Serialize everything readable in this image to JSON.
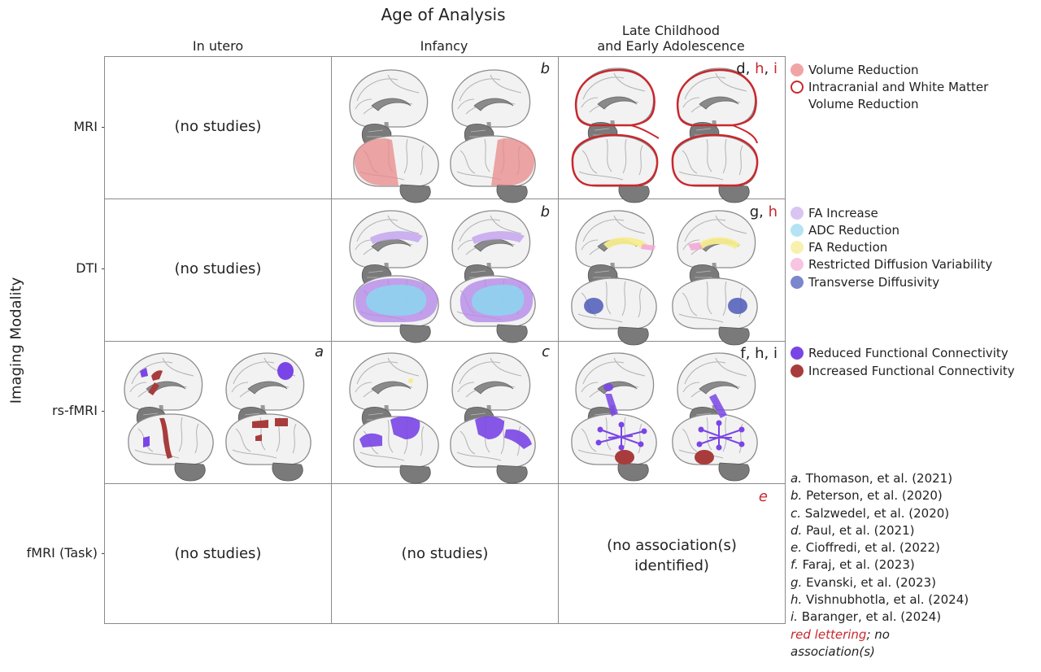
{
  "title": "Age of Analysis",
  "y_axis_label": "Imaging Modality",
  "columns": [
    {
      "label": "In utero"
    },
    {
      "label": "Infancy"
    },
    {
      "label_line1": "Late Childhood",
      "label_line2": "and Early Adolescence"
    }
  ],
  "rows": [
    {
      "label": "MRI"
    },
    {
      "label": "DTI"
    },
    {
      "label": "rs-fMRI"
    },
    {
      "label": "fMRI (Task)"
    }
  ],
  "cells": {
    "mri_utero": "(no studies)",
    "dti_utero": "(no studies)",
    "task_utero": "(no studies)",
    "task_infancy": "(no studies)",
    "task_late_line1": "(no association(s)",
    "task_late_line2": "identified)"
  },
  "cell_refs": {
    "mri_infancy": "b",
    "mri_late_black": "d, ",
    "mri_late_red1": "h",
    "mri_late_sep": ", ",
    "mri_late_red2": "i",
    "dti_infancy": "b",
    "dti_late_black": "g, ",
    "dti_late_red": "h",
    "rs_utero": "a",
    "rs_infancy": "c",
    "rs_late": "f, h, i",
    "task_late_red": "e"
  },
  "legend_mri": [
    {
      "label": "Volume Reduction",
      "color": "#f0a5a5",
      "style": "fill"
    },
    {
      "label_line1": "Intracranial and White Matter",
      "label_line2": "Volume Reduction",
      "color": "#c8282e",
      "style": "outline"
    }
  ],
  "legend_dti": [
    {
      "label": "FA Increase",
      "color": "#d9c4f2"
    },
    {
      "label": "ADC Reduction",
      "color": "#b5e3f3"
    },
    {
      "label": "FA Reduction",
      "color": "#f8f0ad"
    },
    {
      "label": "Restricted Diffusion Variability",
      "color": "#f7c4e2"
    },
    {
      "label": "Transverse Diffusivity",
      "color": "#7b86cc"
    }
  ],
  "legend_rs": [
    {
      "label": "Reduced Functional Connectivity",
      "color": "#7a45e6"
    },
    {
      "label": "Increased Functional Connectivity",
      "color": "#a83c3c"
    }
  ],
  "references": [
    {
      "letter": "a.",
      "text": " Thomason, et al. (2021)"
    },
    {
      "letter": "b.",
      "text": " Peterson, et al. (2020)"
    },
    {
      "letter": "c.",
      "text": " Salzwedel, et al. (2020)"
    },
    {
      "letter": "d.",
      "text": " Paul, et al. (2021)"
    },
    {
      "letter": "e.",
      "text": " Cioffredi, et al. (2022)"
    },
    {
      "letter": "f.",
      "text": " Faraj, et al. (2023)"
    },
    {
      "letter": "g.",
      "text": " Evanski, et al. (2023)"
    },
    {
      "letter": "h.",
      "text": " Vishnubhotla, et al. (2024)"
    },
    {
      "letter": "i.",
      "text": " Baranger, et al. (2024)"
    }
  ],
  "reference_note_red": "red lettering",
  "reference_note_rest": "; no",
  "reference_note_line2": "association(s)"
}
